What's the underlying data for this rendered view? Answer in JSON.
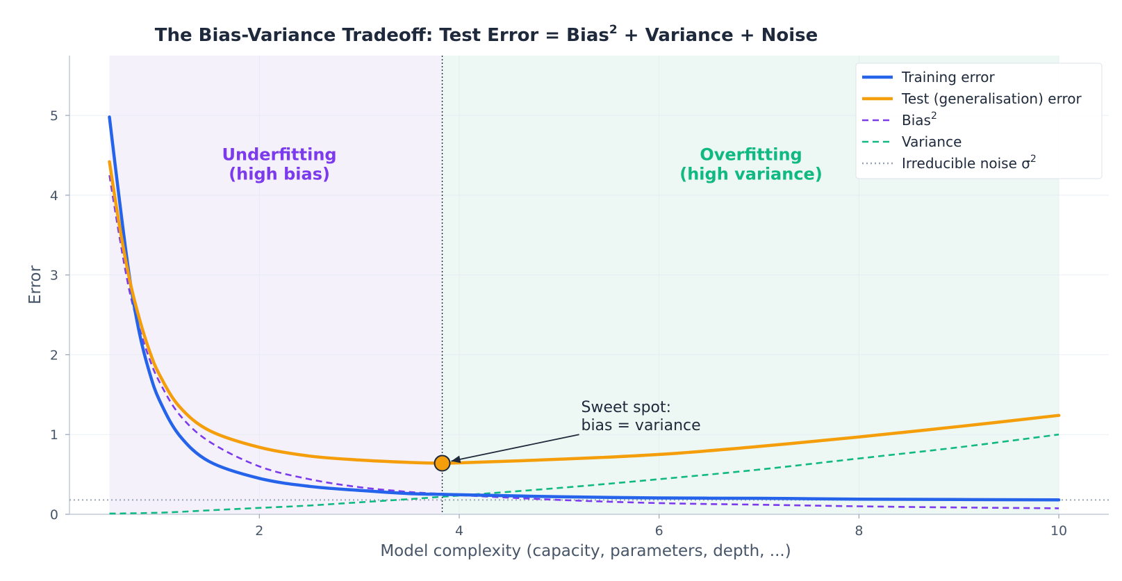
{
  "chart_data": {
    "type": "line",
    "title": "The Bias-Variance Tradeoff:  Test Error = Bias",
    "title_sup": "2",
    "title_rest": " + Variance + Noise",
    "xlabel": "Model complexity  (capacity, parameters, depth, ...)",
    "ylabel": "Error",
    "xlim": [
      0.1,
      10.5
    ],
    "ylim": [
      0,
      5.75
    ],
    "xticks": [
      "2",
      "4",
      "6",
      "8",
      "10"
    ],
    "yticks": [
      "0",
      "1",
      "2",
      "3",
      "4",
      "5"
    ],
    "grid": true,
    "legend_position": "top-right",
    "x": [
      0.5,
      0.6,
      0.7,
      0.8,
      0.9,
      1.0,
      1.2,
      1.5,
      2.0,
      2.5,
      3.0,
      3.5,
      3.83,
      4.0,
      5.0,
      6.0,
      7.0,
      8.0,
      9.0,
      10.0
    ],
    "series": [
      {
        "name": "Training error",
        "color": "#2563eb",
        "style": "solid",
        "values": [
          4.98,
          3.94,
          2.98,
          2.27,
          1.78,
          1.43,
          0.99,
          0.66,
          0.45,
          0.35,
          0.3,
          0.26,
          0.25,
          0.245,
          0.22,
          0.205,
          0.2,
          0.19,
          0.185,
          0.18
        ]
      },
      {
        "name": "Test (generalisation) error",
        "color": "#f59e0b",
        "style": "solid",
        "values": [
          4.42,
          3.62,
          2.95,
          2.45,
          2.05,
          1.75,
          1.35,
          1.05,
          0.84,
          0.73,
          0.68,
          0.65,
          0.64,
          0.645,
          0.69,
          0.75,
          0.85,
          0.97,
          1.1,
          1.24
        ]
      },
      {
        "name": "Bias",
        "name_sup": "2",
        "color": "#7c3aed",
        "style": "dashed",
        "values": [
          4.25,
          3.48,
          2.8,
          2.33,
          1.95,
          1.66,
          1.25,
          0.91,
          0.6,
          0.44,
          0.34,
          0.28,
          0.255,
          0.24,
          0.18,
          0.14,
          0.12,
          0.1,
          0.085,
          0.075
        ]
      },
      {
        "name": "Variance",
        "color": "#10b981",
        "style": "dashed",
        "values": [
          0.01,
          0.01,
          0.012,
          0.014,
          0.017,
          0.02,
          0.03,
          0.05,
          0.08,
          0.11,
          0.15,
          0.19,
          0.22,
          0.235,
          0.33,
          0.44,
          0.56,
          0.7,
          0.84,
          1.0
        ]
      }
    ],
    "noise": {
      "name": "Irreducible noise σ",
      "name_sup": "2",
      "color": "#94a3b8",
      "style": "dotted",
      "value": 0.18
    },
    "regions": [
      {
        "label_line1": "Underfitting",
        "label_line2": "(high bias)",
        "x0": 0.5,
        "x1": 3.83,
        "fill": "#f4f1fb",
        "text_color": "#7c3aed",
        "label_x": 2.2,
        "label_y": 4.44
      },
      {
        "label_line1": "Overfitting",
        "label_line2": "(high variance)",
        "x0": 3.83,
        "x1": 10.0,
        "fill": "#edf8f4",
        "text_color": "#10b981",
        "label_x": 6.92,
        "label_y": 4.44
      }
    ],
    "optimum": {
      "x": 3.83,
      "y": 0.64,
      "color": "#f59e0b"
    },
    "annotation": {
      "line1": "Sweet spot:",
      "line2": "bias = variance",
      "text_x": 5.22,
      "text_y": 1.28,
      "arrow_start_x": 5.2,
      "arrow_start_y": 1.0
    }
  }
}
